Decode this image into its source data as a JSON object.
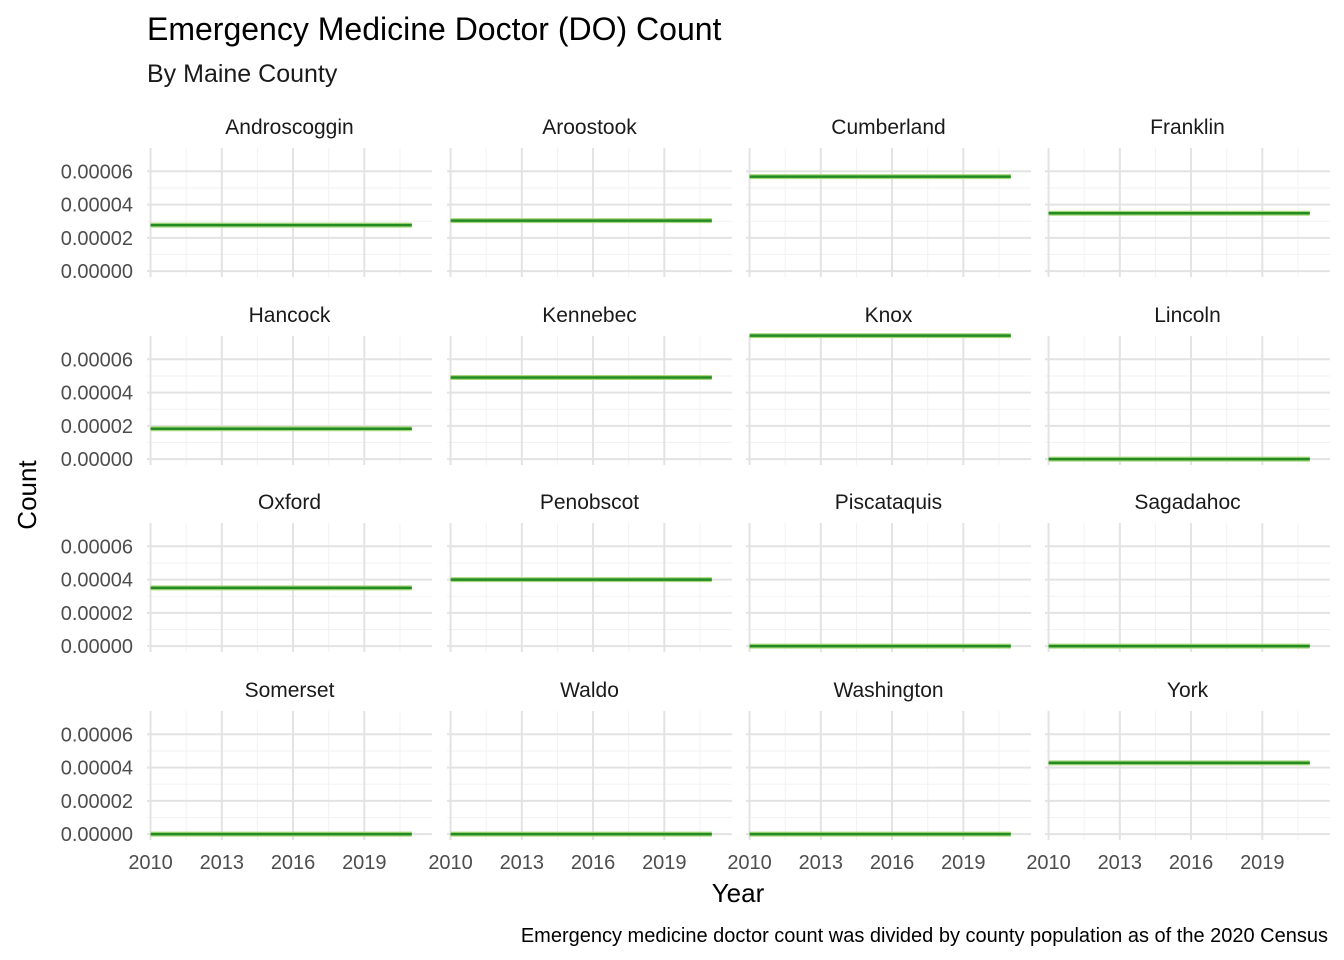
{
  "chart_data": {
    "type": "line",
    "title": "Emergency Medicine Doctor (DO) Count",
    "subtitle": "By Maine County",
    "xlabel": "Year",
    "ylabel": "Count",
    "caption": "Emergency medicine doctor count was divided by county population as of the 2020 Census",
    "x_ticks": [
      "2010",
      "2013",
      "2016",
      "2019"
    ],
    "y_ticks": [
      "0.00000",
      "0.00002",
      "0.00004",
      "0.00006"
    ],
    "xlim": [
      2009.85,
      2021.85
    ],
    "ylim": [
      -3.5e-06,
      7.4e-05
    ],
    "x_range": [
      2010,
      2021
    ],
    "grid": true,
    "line_color": "#228B22",
    "panels": [
      {
        "name": "Androscoggin",
        "value": 2.77e-05
      },
      {
        "name": "Aroostook",
        "value": 3.04e-05
      },
      {
        "name": "Cumberland",
        "value": 5.68e-05
      },
      {
        "name": "Franklin",
        "value": 3.48e-05
      },
      {
        "name": "Hancock",
        "value": 1.83e-05
      },
      {
        "name": "Kennebec",
        "value": 4.91e-05
      },
      {
        "name": "Knox",
        "value": 7.42e-05
      },
      {
        "name": "Lincoln",
        "value": 0.0
      },
      {
        "name": "Oxford",
        "value": 3.5e-05
      },
      {
        "name": "Penobscot",
        "value": 4e-05
      },
      {
        "name": "Piscataquis",
        "value": 0.0
      },
      {
        "name": "Sagadahoc",
        "value": 0.0
      },
      {
        "name": "Somerset",
        "value": 0.0
      },
      {
        "name": "Waldo",
        "value": 0.0
      },
      {
        "name": "Washington",
        "value": 0.0
      },
      {
        "name": "York",
        "value": 4.28e-05
      }
    ]
  }
}
